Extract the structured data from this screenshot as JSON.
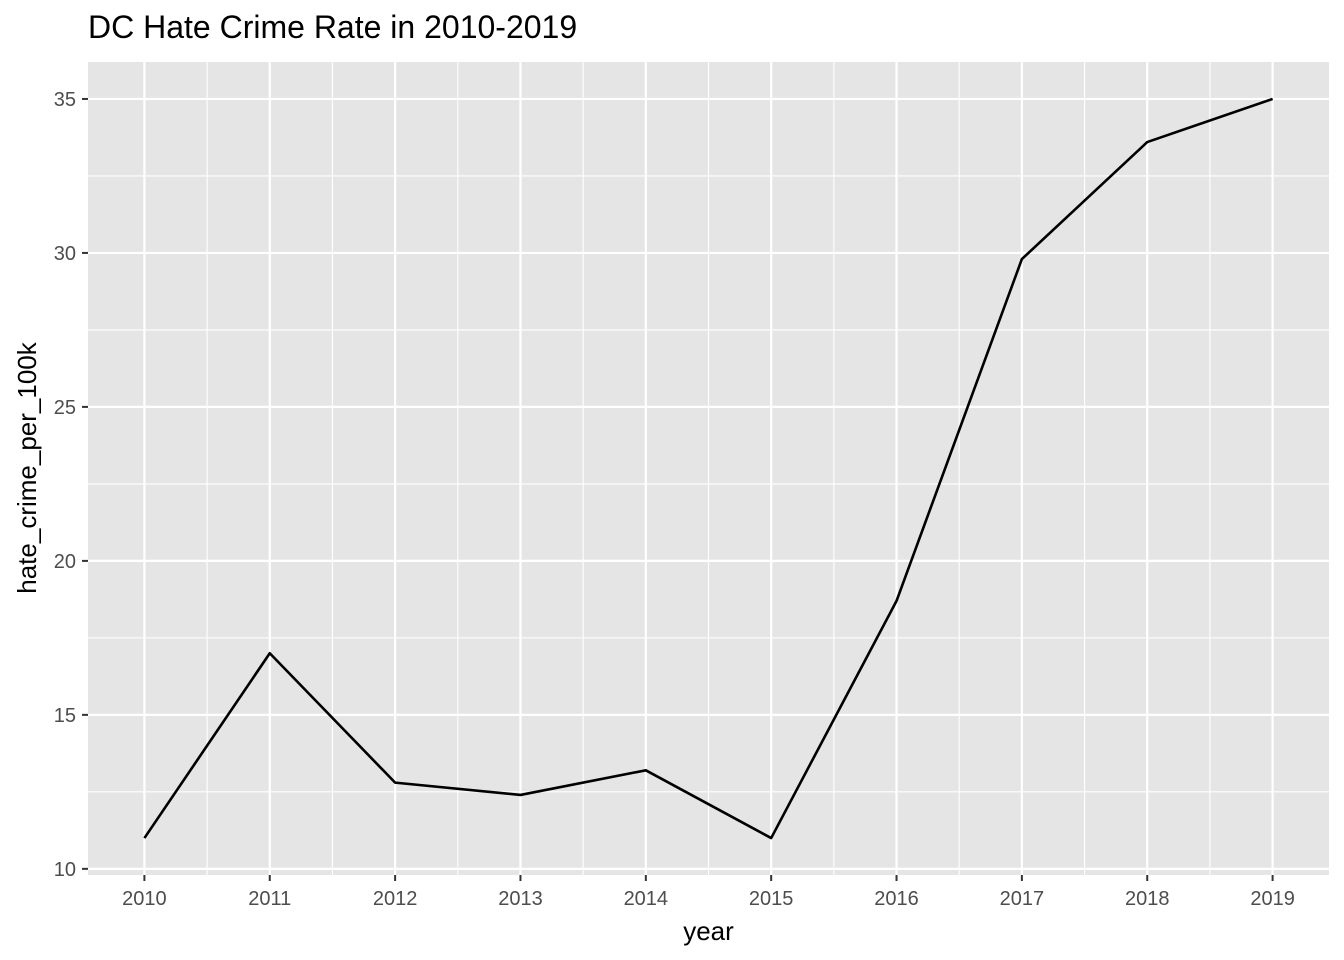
{
  "chart_data": {
    "type": "line",
    "title": "DC Hate Crime Rate in 2010-2019",
    "xlabel": "year",
    "ylabel": "hate_crime_per_100k",
    "x": [
      2010,
      2011,
      2012,
      2013,
      2014,
      2015,
      2016,
      2017,
      2018,
      2019
    ],
    "x_tick_labels": [
      "2010",
      "2011",
      "2012",
      "2013",
      "2014",
      "2015",
      "2016",
      "2017",
      "2018",
      "2019"
    ],
    "y_ticks": [
      10,
      15,
      20,
      25,
      30,
      35
    ],
    "y_tick_labels": [
      "10",
      "15",
      "20",
      "25",
      "30",
      "35"
    ],
    "series": [
      {
        "values": [
          11.0,
          17.0,
          12.8,
          12.4,
          13.2,
          11.0,
          18.7,
          29.8,
          33.6,
          35.0
        ]
      }
    ],
    "xlim": [
      2009.55,
      2019.45
    ],
    "ylim": [
      9.8,
      36.2
    ],
    "grid": true,
    "line_color": "#000000",
    "panel_color": "#e5e5e5",
    "grid_color": "#ffffff"
  }
}
